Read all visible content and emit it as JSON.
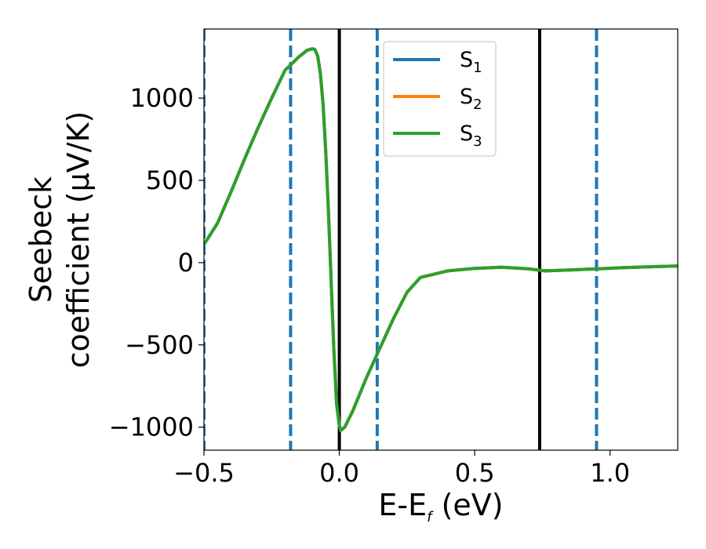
{
  "chart_data": {
    "type": "line",
    "xlabel": "E-E",
    "xlabel_sub": "f",
    "xlabel_unit": " (eV)",
    "ylabel_line1": "Seebeck",
    "ylabel_line2": "coefficient  (μV/K)",
    "xlim": [
      -0.5,
      1.25
    ],
    "ylim": [
      -1140,
      1420
    ],
    "x_ticks": [
      -0.5,
      0.0,
      0.5,
      1.0
    ],
    "x_tick_labels": [
      "−0.5",
      "0.0",
      "0.5",
      "1.0"
    ],
    "y_ticks": [
      -1000,
      -500,
      0,
      500,
      1000
    ],
    "y_tick_labels": [
      "−1000",
      "−500",
      "0",
      "500",
      "1000"
    ],
    "legend_position": "top-center",
    "grid": false,
    "vertical_lines_solid": [
      0.0,
      0.74
    ],
    "vertical_lines_dashed": [
      -0.5,
      -0.18,
      0.14,
      0.95
    ],
    "series": [
      {
        "name": "S",
        "sub": "1",
        "color": "#1f77b4",
        "x": [
          -0.5,
          -0.45,
          -0.4,
          -0.35,
          -0.3,
          -0.25,
          -0.2,
          -0.15,
          -0.12,
          -0.1,
          -0.09,
          -0.08,
          -0.07,
          -0.06,
          -0.05,
          -0.04,
          -0.03,
          -0.02,
          -0.01,
          0.0,
          0.005,
          0.02,
          0.05,
          0.1,
          0.15,
          0.2,
          0.25,
          0.3,
          0.35,
          0.4,
          0.5,
          0.6,
          0.7,
          0.76,
          0.85,
          0.95,
          1.05,
          1.15,
          1.25
        ],
        "values": [
          110,
          240,
          430,
          630,
          820,
          1000,
          1170,
          1250,
          1290,
          1300,
          1295,
          1255,
          1150,
          960,
          670,
          300,
          -120,
          -540,
          -860,
          -990,
          -1020,
          -1000,
          -900,
          -700,
          -520,
          -340,
          -180,
          -90,
          -70,
          -50,
          -35,
          -28,
          -38,
          -50,
          -45,
          -38,
          -30,
          -25,
          -20
        ]
      },
      {
        "name": "S",
        "sub": "2",
        "color": "#ff7f0e",
        "x": [
          -0.5,
          -0.45,
          -0.4,
          -0.35,
          -0.3,
          -0.25,
          -0.2,
          -0.15,
          -0.12,
          -0.1,
          -0.09,
          -0.08,
          -0.07,
          -0.06,
          -0.05,
          -0.04,
          -0.03,
          -0.02,
          -0.01,
          0.0,
          0.005,
          0.02,
          0.05,
          0.1,
          0.15,
          0.2,
          0.25,
          0.3,
          0.35,
          0.4,
          0.5,
          0.6,
          0.7,
          0.76,
          0.85,
          0.95,
          1.05,
          1.15,
          1.25
        ],
        "values": [
          110,
          240,
          430,
          630,
          820,
          1000,
          1170,
          1250,
          1290,
          1300,
          1295,
          1255,
          1150,
          960,
          670,
          300,
          -120,
          -540,
          -860,
          -990,
          -1020,
          -1000,
          -900,
          -700,
          -520,
          -340,
          -180,
          -90,
          -70,
          -50,
          -35,
          -28,
          -38,
          -50,
          -45,
          -38,
          -30,
          -25,
          -20
        ]
      },
      {
        "name": "S",
        "sub": "3",
        "color": "#2ca02c",
        "x": [
          -0.5,
          -0.45,
          -0.4,
          -0.35,
          -0.3,
          -0.25,
          -0.2,
          -0.15,
          -0.12,
          -0.1,
          -0.09,
          -0.08,
          -0.07,
          -0.06,
          -0.05,
          -0.04,
          -0.03,
          -0.02,
          -0.01,
          0.0,
          0.005,
          0.02,
          0.05,
          0.1,
          0.15,
          0.2,
          0.25,
          0.3,
          0.35,
          0.4,
          0.5,
          0.6,
          0.7,
          0.76,
          0.85,
          0.95,
          1.05,
          1.15,
          1.25
        ],
        "values": [
          110,
          240,
          430,
          630,
          820,
          1000,
          1170,
          1250,
          1290,
          1300,
          1295,
          1255,
          1150,
          960,
          670,
          300,
          -120,
          -540,
          -860,
          -990,
          -1020,
          -1000,
          -900,
          -700,
          -520,
          -340,
          -180,
          -90,
          -70,
          -50,
          -35,
          -28,
          -38,
          -50,
          -45,
          -38,
          -30,
          -25,
          -20
        ]
      }
    ]
  }
}
